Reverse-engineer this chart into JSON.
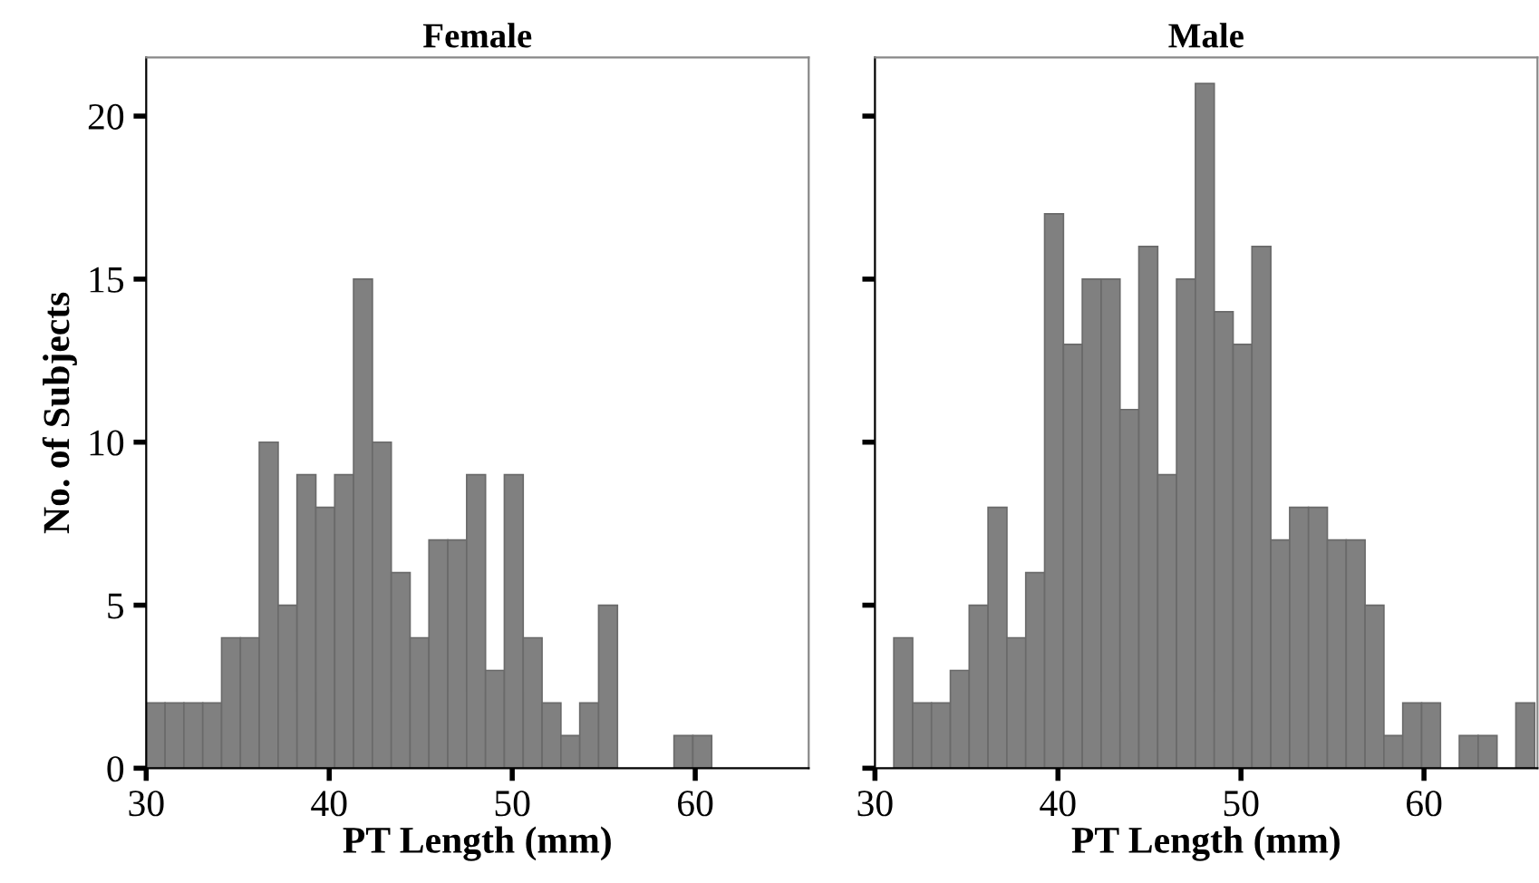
{
  "chart_data": [
    {
      "type": "histogram",
      "title": "Female",
      "xlabel": "PT Length (mm)",
      "ylabel": "No. of Subjects",
      "color": "#808080",
      "bins": [
        30,
        31.03,
        32.06,
        33.09,
        34.12,
        35.15,
        36.18,
        37.21,
        38.24,
        39.27,
        40.3,
        41.33,
        42.36,
        43.39,
        44.42,
        45.45,
        46.48,
        47.51,
        48.54,
        49.57,
        50.6,
        51.63,
        52.66,
        53.69,
        54.72,
        55.75,
        56.78,
        57.81,
        58.84,
        59.87,
        60.9,
        61.93,
        62.96,
        63.99,
        65.02,
        66.05
      ],
      "values": [
        2,
        2,
        2,
        2,
        4,
        4,
        10,
        5,
        9,
        8,
        9,
        15,
        10,
        6,
        4,
        7,
        7,
        9,
        3,
        9,
        4,
        2,
        1,
        2,
        5,
        0,
        0,
        0,
        1,
        1,
        0,
        0,
        0,
        0,
        0
      ],
      "xlim": [
        30,
        66.2
      ],
      "xticks": [
        30,
        40,
        50,
        60
      ],
      "ylim": [
        0,
        21.8
      ],
      "yticks": [
        0,
        5,
        10,
        15,
        20
      ],
      "grid": false
    },
    {
      "type": "histogram",
      "title": "Male",
      "xlabel": "PT Length (mm)",
      "color": "#808080",
      "bins": [
        30,
        31.03,
        32.06,
        33.09,
        34.12,
        35.15,
        36.18,
        37.21,
        38.24,
        39.27,
        40.3,
        41.33,
        42.36,
        43.39,
        44.42,
        45.45,
        46.48,
        47.51,
        48.54,
        49.57,
        50.6,
        51.63,
        52.66,
        53.69,
        54.72,
        55.75,
        56.78,
        57.81,
        58.84,
        59.87,
        60.9,
        61.93,
        62.96,
        63.99,
        65.02,
        66.05
      ],
      "values": [
        0,
        4,
        2,
        2,
        3,
        5,
        8,
        4,
        6,
        17,
        13,
        15,
        15,
        11,
        16,
        9,
        15,
        21,
        14,
        13,
        16,
        7,
        8,
        8,
        7,
        7,
        5,
        1,
        2,
        2,
        0,
        1,
        1,
        0,
        2
      ],
      "xlim": [
        30,
        66.2
      ],
      "xticks": [
        30,
        40,
        50,
        60
      ],
      "ylim": [
        0,
        21.8
      ],
      "yticks": [
        0,
        5,
        10,
        15,
        20
      ],
      "tick_labels": "x",
      "grid": false
    }
  ]
}
